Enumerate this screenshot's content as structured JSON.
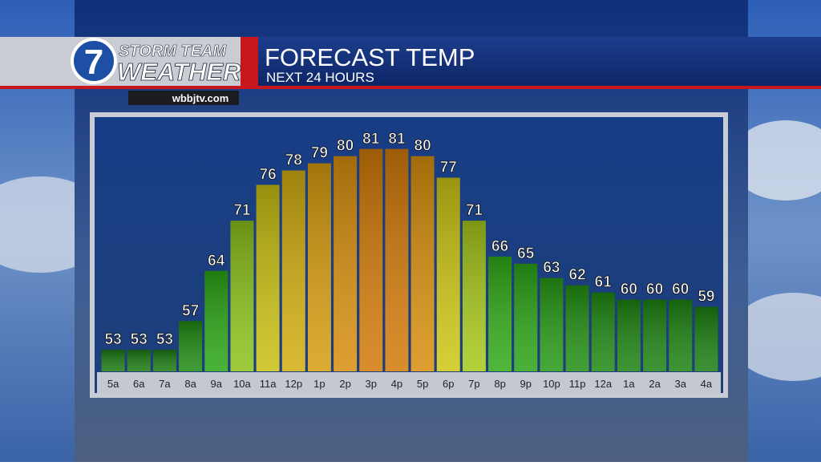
{
  "brand": {
    "logo": "7",
    "line1": "STORM TEAM",
    "line2": "WEATHER",
    "site": "wbbjtv.com"
  },
  "chart_data": {
    "type": "bar",
    "title": "FORECAST TEMP",
    "subtitle": "NEXT 24 HOURS",
    "categories": [
      "5a",
      "6a",
      "7a",
      "8a",
      "9a",
      "10a",
      "11a",
      "12p",
      "1p",
      "2p",
      "3p",
      "4p",
      "5p",
      "6p",
      "7p",
      "8p",
      "9p",
      "10p",
      "11p",
      "12a",
      "1a",
      "2a",
      "3a",
      "4a"
    ],
    "values": [
      53,
      53,
      53,
      57,
      64,
      71,
      76,
      78,
      79,
      80,
      81,
      81,
      80,
      77,
      71,
      66,
      65,
      63,
      62,
      61,
      60,
      60,
      60,
      59
    ],
    "colors": [
      "#1b7a12",
      "#1b7a12",
      "#1b7a12",
      "#1f8a12",
      "#2aa515",
      "#8cc21a",
      "#c8bf12",
      "#d2ad10",
      "#d69c0e",
      "#d88e0c",
      "#d27a08",
      "#d27a08",
      "#d88e0c",
      "#cdc614",
      "#a6c81a",
      "#31aa18",
      "#2ba316",
      "#269815",
      "#228e13",
      "#1f8812",
      "#1c8211",
      "#1c8211",
      "#1c8211",
      "#1a7e10"
    ],
    "ylim": [
      50,
      85
    ],
    "grid": false
  }
}
